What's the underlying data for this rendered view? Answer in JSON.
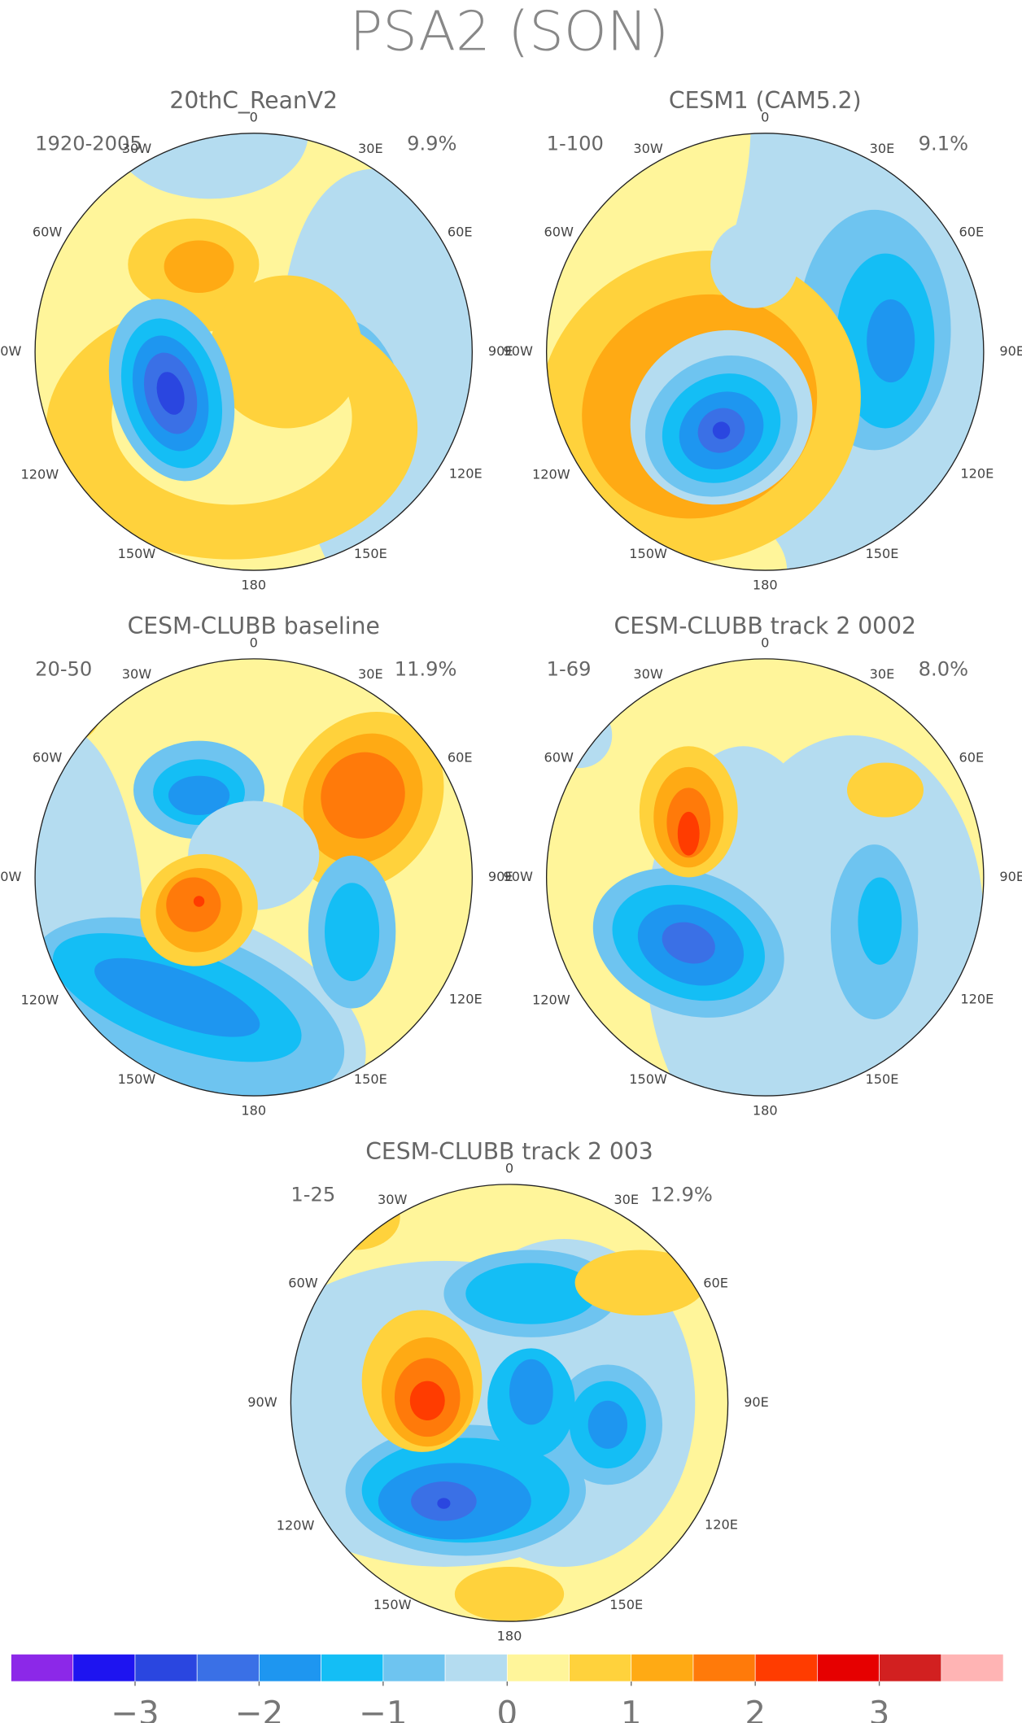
{
  "title": "PSA2 (SON)",
  "panels": [
    {
      "title": "20thC_ReanV2",
      "period": "1920-2005",
      "variance": "9.9%"
    },
    {
      "title": "CESM1 (CAM5.2)",
      "period": "1-100",
      "variance": "9.1%"
    },
    {
      "title": "CESM-CLUBB baseline",
      "period": "20-50",
      "variance": "11.9%"
    },
    {
      "title": "CESM-CLUBB track 2 0002",
      "period": "1-69",
      "variance": "8.0%"
    },
    {
      "title": "CESM-CLUBB track 2 003",
      "period": "1-25",
      "variance": "12.9%"
    }
  ],
  "lon_labels": [
    "0",
    "30E",
    "60E",
    "90E",
    "120E",
    "150E",
    "180",
    "150W",
    "120W",
    "90W",
    "60W",
    "30W"
  ],
  "colorbar": {
    "colors": [
      "#8c28e8",
      "#1e14f0",
      "#2a46e0",
      "#3a70e6",
      "#1e96f0",
      "#14bef5",
      "#6ec4f0",
      "#b4dcf0",
      "#fff59a",
      "#ffd23c",
      "#ffaa14",
      "#ff7a0a",
      "#ff3c00",
      "#e60000",
      "#d22020",
      "#ffb4b4"
    ],
    "bounds": [
      -4,
      -3.5,
      -3,
      -2.5,
      -2,
      -1.5,
      -1,
      -0.5,
      0,
      0.5,
      1,
      1.5,
      2,
      2.5,
      3,
      3.5,
      4
    ],
    "ticks": [
      {
        "value": -3,
        "label": "−3"
      },
      {
        "value": -2,
        "label": "−2"
      },
      {
        "value": -1,
        "label": "−1"
      },
      0,
      1,
      2,
      3
    ]
  }
}
